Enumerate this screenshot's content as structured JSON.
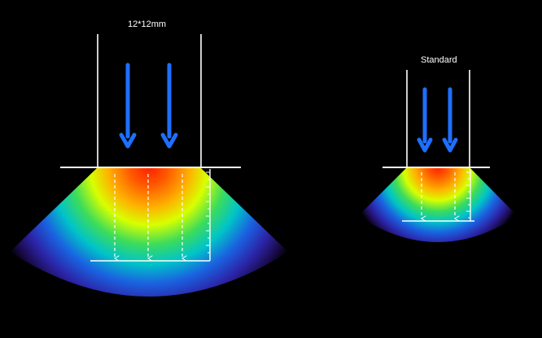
{
  "diagram": {
    "left_label": "12*12mm",
    "right_label": "Standard"
  },
  "colors": {
    "background": "#000000",
    "arrow": "#1e6fff",
    "outline": "#ffffff",
    "gradient": [
      "#ff1e00",
      "#ff7a00",
      "#ffe600",
      "#4cd964",
      "#00c2d6",
      "#1a4fd6",
      "#3b1596",
      "#000000"
    ]
  },
  "icons": [
    "arrow-down-icon",
    "dashed-arrow-down-icon"
  ]
}
